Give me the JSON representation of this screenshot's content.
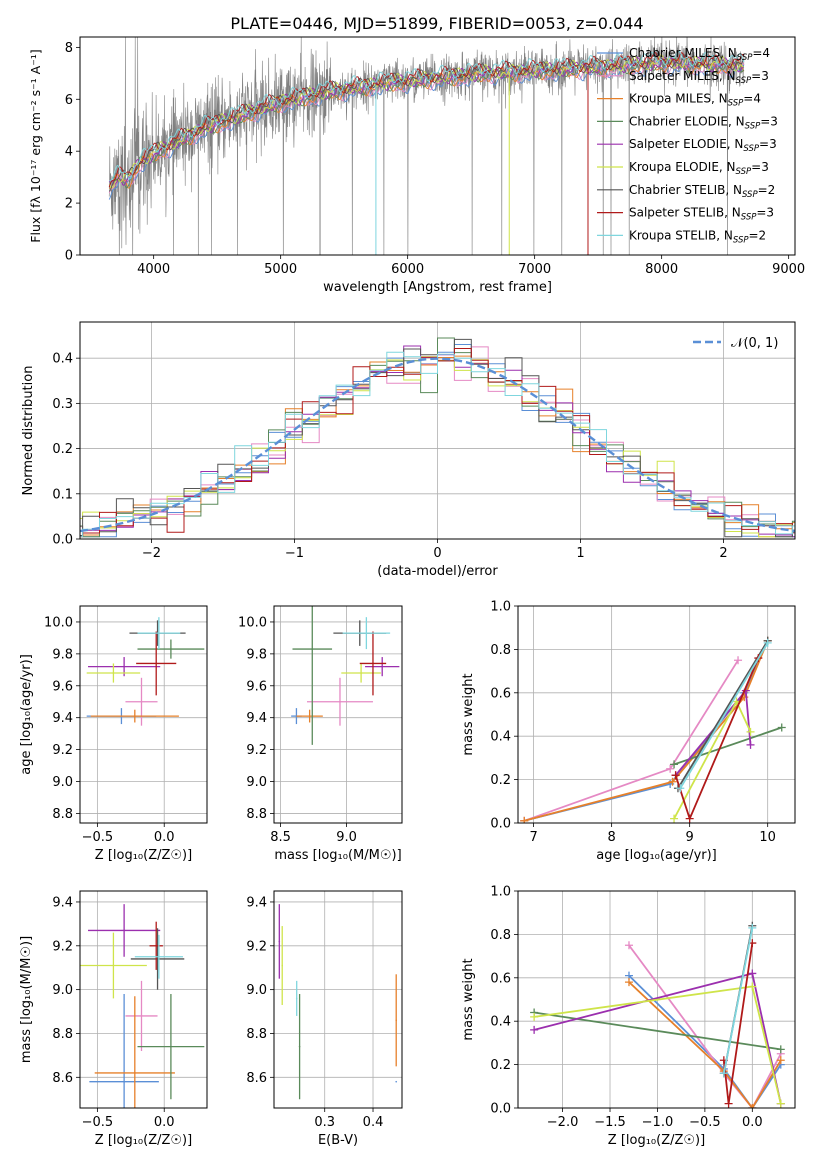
{
  "figure_title": "PLATE=0446, MJD=51899, FIBERID=0053, z=0.044",
  "colors": {
    "grid": "#b0b0b0",
    "data_spectrum": "#808080",
    "gaussian": "#5a8fd6"
  },
  "chart_data": [
    {
      "id": "spectrum",
      "type": "line",
      "title": "PLATE=0446, MJD=51899, FIBERID=0053, z=0.044",
      "xlabel": "wavelength [Angstrom, rest frame]",
      "ylabel": "Flux [fλ 10⁻¹⁷ erg cm⁻² s⁻¹ A⁻¹]",
      "xlim": [
        3420,
        9050
      ],
      "ylim": [
        0,
        8.4
      ],
      "xticks": [
        4000,
        5000,
        6000,
        7000,
        8000,
        9000
      ],
      "yticks": [
        0,
        2,
        4,
        6,
        8
      ],
      "grid": false,
      "legend": "upper right",
      "continuum_anchors": {
        "x": [
          3650,
          3720,
          3800,
          3900,
          4000,
          4200,
          4400,
          4700,
          5000,
          5400,
          5800,
          6200,
          6600,
          7000,
          7400,
          7700,
          8000,
          8300,
          8650
        ],
        "y": [
          2.6,
          3.0,
          2.9,
          3.6,
          3.9,
          4.4,
          4.9,
          5.4,
          5.9,
          6.3,
          6.6,
          6.8,
          7.0,
          7.1,
          7.2,
          7.3,
          7.4,
          7.35,
          7.3
        ]
      },
      "series": [
        {
          "name": "Chabrier MILES, N_SSP=4",
          "color": "#5b8fd6"
        },
        {
          "name": "Salpeter MILES, N_SSP=3",
          "color": "#e589c4"
        },
        {
          "name": "Kroupa MILES, N_SSP=4",
          "color": "#e6802a"
        },
        {
          "name": "Chabrier ELODIE, N_SSP=3",
          "color": "#5a8a5a"
        },
        {
          "name": "Salpeter ELODIE, N_SSP=3",
          "color": "#9b2fae"
        },
        {
          "name": "Kroupa ELODIE, N_SSP=3",
          "color": "#cfe44a"
        },
        {
          "name": "Chabrier STELIB, N_SSP=2",
          "color": "#555555"
        },
        {
          "name": "Salpeter STELIB, N_SSP=3",
          "color": "#b01a1a"
        },
        {
          "name": "Kroupa STELIB, N_SSP=2",
          "color": "#7fd6de"
        }
      ]
    },
    {
      "id": "residuals",
      "type": "line",
      "xlabel": "(data-model)/error",
      "ylabel": "Normed distribution",
      "xlim": [
        -2.5,
        2.5
      ],
      "ylim": [
        0,
        0.48
      ],
      "xticks": [
        -2,
        -1,
        0,
        1,
        2
      ],
      "yticks": [
        0.0,
        0.1,
        0.2,
        0.3,
        0.4
      ],
      "grid": true,
      "legend": "upper right",
      "gaussian": {
        "label": "𝒩(0, 1)",
        "mu": 0,
        "sigma": 1
      }
    },
    {
      "id": "age_vs_Z",
      "type": "scatter",
      "xlabel": "Z [log₁₀(Z/Z☉)]",
      "ylabel": "age  [log₁₀(age/yr)]",
      "xlim": [
        -0.63,
        0.32
      ],
      "ylim": [
        8.74,
        10.1
      ],
      "xticks": [
        -0.5,
        0.0
      ],
      "yticks": [
        8.8,
        9.0,
        9.2,
        9.4,
        9.6,
        9.8,
        10.0
      ],
      "grid": true,
      "points": [
        {
          "x": -0.32,
          "y": 9.41,
          "xerr": 0.26,
          "yerr": 0.05,
          "c": 0
        },
        {
          "x": -0.17,
          "y": 9.5,
          "xerr": 0.12,
          "yerr": 0.15,
          "c": 1
        },
        {
          "x": -0.22,
          "y": 9.41,
          "xerr": 0.33,
          "yerr": 0.04,
          "c": 2
        },
        {
          "x": 0.05,
          "y": 9.83,
          "xerr": 0.25,
          "yerr": 0.06,
          "c": 3
        },
        {
          "x": -0.3,
          "y": 9.72,
          "xerr": 0.27,
          "yerr": 0.06,
          "c": 4
        },
        {
          "x": -0.38,
          "y": 9.68,
          "xerr": 0.2,
          "yerr": 0.06,
          "c": 5
        },
        {
          "x": -0.05,
          "y": 9.93,
          "xerr": 0.21,
          "yerr": 0.08,
          "c": 6
        },
        {
          "x": -0.06,
          "y": 9.74,
          "xerr": 0.15,
          "yerr": 0.2,
          "c": 7
        },
        {
          "x": -0.04,
          "y": 9.93,
          "xerr": 0.16,
          "yerr": 0.1,
          "c": 8
        }
      ]
    },
    {
      "id": "age_vs_mass",
      "type": "scatter",
      "xlabel": "mass [log₁₀(M/M☉)]",
      "ylabel": "",
      "xlim": [
        8.45,
        9.42
      ],
      "ylim": [
        8.74,
        10.1
      ],
      "xticks": [
        8.5,
        9.0
      ],
      "yticks": [
        8.8,
        9.0,
        9.2,
        9.4,
        9.6,
        9.8,
        10.0
      ],
      "grid": true,
      "points": [
        {
          "x": 8.62,
          "y": 9.41,
          "xerr": 0.04,
          "yerr": 0.05,
          "c": 0
        },
        {
          "x": 8.95,
          "y": 9.5,
          "xerr": 0.25,
          "yerr": 0.15,
          "c": 1
        },
        {
          "x": 8.72,
          "y": 9.41,
          "xerr": 0.1,
          "yerr": 0.04,
          "c": 2
        },
        {
          "x": 8.74,
          "y": 9.83,
          "xerr": 0.15,
          "yerr": 0.6,
          "c": 3
        },
        {
          "x": 9.27,
          "y": 9.72,
          "xerr": 0.13,
          "yerr": 0.06,
          "c": 4
        },
        {
          "x": 9.11,
          "y": 9.68,
          "xerr": 0.15,
          "yerr": 0.06,
          "c": 5
        },
        {
          "x": 9.1,
          "y": 9.93,
          "xerr": 0.2,
          "yerr": 0.08,
          "c": 6
        },
        {
          "x": 9.2,
          "y": 9.74,
          "xerr": 0.1,
          "yerr": 0.2,
          "c": 7
        },
        {
          "x": 9.15,
          "y": 9.93,
          "xerr": 0.18,
          "yerr": 0.1,
          "c": 8
        }
      ]
    },
    {
      "id": "weight_vs_age",
      "type": "line",
      "xlabel": "age  [log₁₀(age/yr)]",
      "ylabel": "mass weight",
      "xlim": [
        6.8,
        10.35
      ],
      "ylim": [
        0,
        1.0
      ],
      "xticks": [
        7,
        8,
        9,
        10
      ],
      "yticks": [
        0.0,
        0.2,
        0.4,
        0.6,
        0.8,
        1.0
      ],
      "grid": true,
      "series": [
        {
          "c": 0,
          "x": [
            6.88,
            8.75,
            9.7,
            10.0
          ],
          "y": [
            0.01,
            0.18,
            0.6,
            0.84
          ]
        },
        {
          "c": 1,
          "x": [
            6.88,
            8.75,
            9.62
          ],
          "y": [
            0.01,
            0.25,
            0.75
          ]
        },
        {
          "c": 2,
          "x": [
            6.88,
            8.78,
            9.7,
            10.0
          ],
          "y": [
            0.01,
            0.19,
            0.58,
            0.84
          ]
        },
        {
          "c": 3,
          "x": [
            8.8,
            10.18
          ],
          "y": [
            0.27,
            0.44
          ]
        },
        {
          "c": 4,
          "x": [
            8.82,
            9.72,
            9.78
          ],
          "y": [
            0.22,
            0.61,
            0.36
          ]
        },
        {
          "c": 5,
          "x": [
            8.8,
            9.6,
            9.78
          ],
          "y": [
            0.02,
            0.56,
            0.42
          ]
        },
        {
          "c": 6,
          "x": [
            8.85,
            10.0
          ],
          "y": [
            0.16,
            0.84
          ]
        },
        {
          "c": 7,
          "x": [
            8.82,
            9.0,
            9.88
          ],
          "y": [
            0.22,
            0.02,
            0.76
          ]
        },
        {
          "c": 8,
          "x": [
            8.88,
            10.0
          ],
          "y": [
            0.16,
            0.83
          ]
        }
      ]
    },
    {
      "id": "mass_vs_Z",
      "type": "scatter",
      "xlabel": "Z [log₁₀(Z/Z☉)]",
      "ylabel": "mass [log₁₀(M/M☉)]",
      "xlim": [
        -0.63,
        0.32
      ],
      "ylim": [
        8.46,
        9.45
      ],
      "xticks": [
        -0.5,
        0.0
      ],
      "yticks": [
        8.6,
        8.8,
        9.0,
        9.2,
        9.4
      ],
      "grid": true,
      "points": [
        {
          "x": -0.3,
          "y": 8.58,
          "xerr": 0.26,
          "yerr": 0.4,
          "c": 0
        },
        {
          "x": -0.17,
          "y": 8.88,
          "xerr": 0.12,
          "yerr": 0.16,
          "c": 1
        },
        {
          "x": -0.22,
          "y": 8.62,
          "xerr": 0.3,
          "yerr": 0.35,
          "c": 2
        },
        {
          "x": 0.05,
          "y": 8.74,
          "xerr": 0.25,
          "yerr": 0.24,
          "c": 3
        },
        {
          "x": -0.3,
          "y": 9.27,
          "xerr": 0.27,
          "yerr": 0.12,
          "c": 4
        },
        {
          "x": -0.38,
          "y": 9.11,
          "xerr": 0.25,
          "yerr": 0.15,
          "c": 5
        },
        {
          "x": -0.05,
          "y": 9.14,
          "xerr": 0.2,
          "yerr": 0.14,
          "c": 6
        },
        {
          "x": -0.06,
          "y": 9.2,
          "xerr": 0.05,
          "yerr": 0.11,
          "c": 7
        },
        {
          "x": -0.04,
          "y": 9.15,
          "xerr": 0.18,
          "yerr": 0.1,
          "c": 8
        }
      ]
    },
    {
      "id": "mass_vs_EBV",
      "type": "scatter",
      "xlabel": "E(B-V)",
      "ylabel": "",
      "xlim": [
        0.195,
        0.46
      ],
      "ylim": [
        8.46,
        9.45
      ],
      "xticks": [
        0.3,
        0.4
      ],
      "yticks": [
        8.6,
        8.8,
        9.0,
        9.2,
        9.4
      ],
      "grid": true,
      "points": [
        {
          "x": 0.448,
          "y": 8.58,
          "yerr": 0.0,
          "c": 0
        },
        {
          "x": 0.448,
          "y": 8.86,
          "yerr": 0.21,
          "c": 2
        },
        {
          "x": 0.248,
          "y": 8.74,
          "yerr": 0.24,
          "c": 3
        },
        {
          "x": 0.206,
          "y": 9.22,
          "yerr": 0.17,
          "c": 4
        },
        {
          "x": 0.212,
          "y": 9.11,
          "yerr": 0.18,
          "c": 5
        },
        {
          "x": 0.242,
          "y": 8.96,
          "yerr": 0.08,
          "c": 8
        }
      ]
    },
    {
      "id": "weight_vs_Z",
      "type": "line",
      "xlabel": "Z [log₁₀(Z/Z☉)]",
      "ylabel": "mass weight",
      "xlim": [
        -2.47,
        0.45
      ],
      "ylim": [
        0,
        1.0
      ],
      "xticks": [
        -2.0,
        -1.5,
        -1.0,
        -0.5,
        0.0
      ],
      "yticks": [
        0.0,
        0.2,
        0.4,
        0.6,
        0.8,
        1.0
      ],
      "grid": true,
      "series": [
        {
          "c": 0,
          "x": [
            -1.3,
            -0.3,
            0.0,
            0.3
          ],
          "y": [
            0.61,
            0.18,
            0.0,
            0.2
          ]
        },
        {
          "c": 1,
          "x": [
            -1.3,
            -0.3,
            0.0,
            0.3
          ],
          "y": [
            0.75,
            0.16,
            0.0,
            0.25
          ]
        },
        {
          "c": 2,
          "x": [
            -1.3,
            -0.3,
            0.0,
            0.3
          ],
          "y": [
            0.58,
            0.17,
            0.0,
            0.22
          ]
        },
        {
          "c": 3,
          "x": [
            -2.3,
            0.3
          ],
          "y": [
            0.44,
            0.27
          ]
        },
        {
          "c": 4,
          "x": [
            -2.3,
            0.0,
            0.3
          ],
          "y": [
            0.36,
            0.62,
            0.02
          ]
        },
        {
          "c": 5,
          "x": [
            -2.3,
            0.0,
            0.3
          ],
          "y": [
            0.42,
            0.56,
            0.02
          ]
        },
        {
          "c": 6,
          "x": [
            -0.3,
            0.0
          ],
          "y": [
            0.16,
            0.84
          ]
        },
        {
          "c": 7,
          "x": [
            -0.3,
            -0.25,
            0.0
          ],
          "y": [
            0.22,
            0.02,
            0.76
          ]
        },
        {
          "c": 8,
          "x": [
            -0.3,
            0.0
          ],
          "y": [
            0.16,
            0.83
          ]
        }
      ]
    }
  ]
}
